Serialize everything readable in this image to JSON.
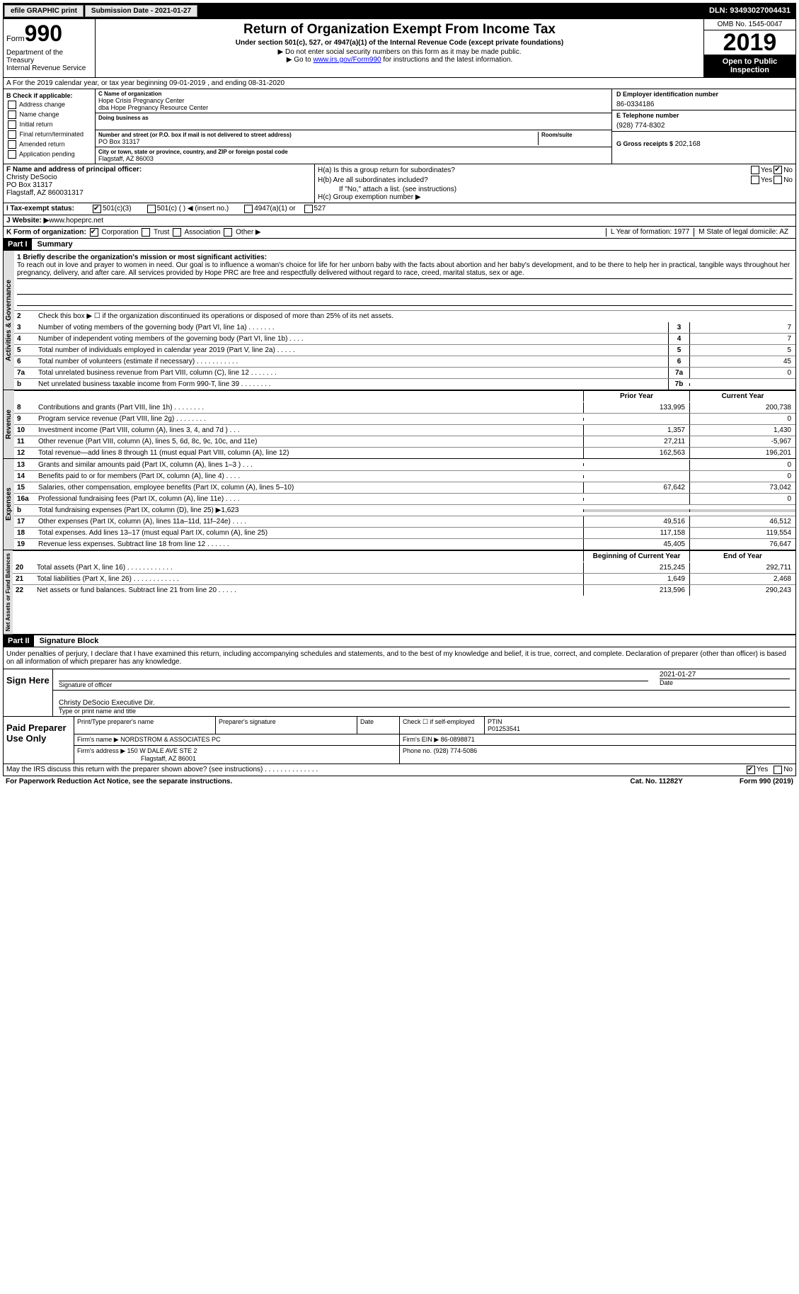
{
  "topbar": {
    "btn1": "efile GRAPHIC print",
    "btn2": "Submission Date - 2021-01-27",
    "dln": "DLN: 93493027004431"
  },
  "header": {
    "form_label": "Form",
    "form_num": "990",
    "dept": "Department of the Treasury\nInternal Revenue Service",
    "title": "Return of Organization Exempt From Income Tax",
    "subtitle": "Under section 501(c), 527, or 4947(a)(1) of the Internal Revenue Code (except private foundations)",
    "note1": "▶ Do not enter social security numbers on this form as it may be made public.",
    "note2_pre": "▶ Go to ",
    "note2_link": "www.irs.gov/Form990",
    "note2_post": " for instructions and the latest information.",
    "omb": "OMB No. 1545-0047",
    "year": "2019",
    "open": "Open to Public Inspection"
  },
  "section_a": "A For the 2019 calendar year, or tax year beginning 09-01-2019    , and ending 08-31-2020",
  "col_b": {
    "label": "B Check if applicable:",
    "items": [
      "Address change",
      "Name change",
      "Initial return",
      "Final return/terminated",
      "Amended return",
      "Application pending"
    ]
  },
  "col_c": {
    "name_label": "C Name of organization",
    "name": "Hope Crisis Pregnancy Center",
    "dba": "dba Hope Pregnancy Resource Center",
    "dba_label": "Doing business as",
    "street_label": "Number and street (or P.O. box if mail is not delivered to street address)",
    "room_label": "Room/suite",
    "street": "PO Box 31317",
    "city_label": "City or town, state or province, country, and ZIP or foreign postal code",
    "city": "Flagstaff, AZ   86003"
  },
  "col_d": {
    "ein_label": "D Employer identification number",
    "ein": "86-0334186",
    "phone_label": "E Telephone number",
    "phone": "(928) 774-8302",
    "gross_label": "G Gross receipts $",
    "gross": "202,168"
  },
  "f": {
    "label": "F  Name and address of principal officer:",
    "name": "Christy DeSocio",
    "addr1": "PO Box 31317",
    "addr2": "Flagstaff, AZ   860031317"
  },
  "h": {
    "a_label": "H(a)  Is this a group return for subordinates?",
    "b_label": "H(b)  Are all subordinates included?",
    "b_note": "If \"No,\" attach a list. (see instructions)",
    "c_label": "H(c)  Group exemption number ▶"
  },
  "i": {
    "label": "I  Tax-exempt status:",
    "opts": [
      "501(c)(3)",
      "501(c) (  ) ◀ (insert no.)",
      "4947(a)(1) or",
      "527"
    ]
  },
  "j": {
    "label": "J  Website: ▶",
    "val": " www.hopeprc.net"
  },
  "k": {
    "label": "K Form of organization:",
    "opts": [
      "Corporation",
      "Trust",
      "Association",
      "Other ▶"
    ],
    "l": "L Year of formation: 1977",
    "m": "M State of legal domicile: AZ"
  },
  "part1": {
    "hdr": "Part I",
    "title": "Summary"
  },
  "mission": {
    "label": "1  Briefly describe the organization's mission or most significant activities:",
    "text": "To reach out in love and prayer to women in need. Our goal is to influence a woman's choice for life for her unborn baby with the facts about abortion and her baby's development, and to be there to help her in practical, tangible ways throughout her pregnancy, delivery, and after care. All services provided by Hope PRC are free and respectfully delivered without regard to race, creed, marital status, sex or age."
  },
  "gov": {
    "l2": "Check this box ▶ ☐  if the organization discontinued its operations or disposed of more than 25% of its net assets.",
    "lines": [
      {
        "n": "3",
        "t": "Number of voting members of the governing body (Part VI, line 1a)   .    .    .    .    .    .    .",
        "b": "3",
        "v": "7"
      },
      {
        "n": "4",
        "t": "Number of independent voting members of the governing body (Part VI, line 1b)   .    .    .    .",
        "b": "4",
        "v": "7"
      },
      {
        "n": "5",
        "t": "Total number of individuals employed in calendar year 2019 (Part V, line 2a)   .    .    .    .    .",
        "b": "5",
        "v": "5"
      },
      {
        "n": "6",
        "t": "Total number of volunteers (estimate if necessary)    .    .    .    .    .    .    .    .    .    .    .",
        "b": "6",
        "v": "45"
      },
      {
        "n": "7a",
        "t": "Total unrelated business revenue from Part VIII, column (C), line 12    .    .    .    .    .    .    .",
        "b": "7a",
        "v": "0"
      },
      {
        "n": "b",
        "t": "Net unrelated business taxable income from Form 990-T, line 39    .    .    .    .    .    .    .    .",
        "b": "7b",
        "v": ""
      }
    ]
  },
  "col_hdrs": {
    "prior": "Prior Year",
    "current": "Current Year"
  },
  "rev": [
    {
      "n": "8",
      "t": "Contributions and grants (Part VIII, line 1h)    .    .    .    .    .    .    .    .",
      "p": "133,995",
      "c": "200,738"
    },
    {
      "n": "9",
      "t": "Program service revenue (Part VIII, line 2g)    .    .    .    .    .    .    .    .",
      "p": "",
      "c": "0"
    },
    {
      "n": "10",
      "t": "Investment income (Part VIII, column (A), lines 3, 4, and 7d )    .    .    .",
      "p": "1,357",
      "c": "1,430"
    },
    {
      "n": "11",
      "t": "Other revenue (Part VIII, column (A), lines 5, 6d, 8c, 9c, 10c, and 11e)",
      "p": "27,211",
      "c": "-5,967"
    },
    {
      "n": "12",
      "t": "Total revenue—add lines 8 through 11 (must equal Part VIII, column (A), line 12)",
      "p": "162,563",
      "c": "196,201"
    }
  ],
  "exp": [
    {
      "n": "13",
      "t": "Grants and similar amounts paid (Part IX, column (A), lines 1–3 )   .    .    .",
      "p": "",
      "c": "0"
    },
    {
      "n": "14",
      "t": "Benefits paid to or for members (Part IX, column (A), line 4)    .    .    .    .",
      "p": "",
      "c": "0"
    },
    {
      "n": "15",
      "t": "Salaries, other compensation, employee benefits (Part IX, column (A), lines 5–10)",
      "p": "67,642",
      "c": "73,042"
    },
    {
      "n": "16a",
      "t": "Professional fundraising fees (Part IX, column (A), line 11e)   .    .    .    .",
      "p": "",
      "c": "0"
    },
    {
      "n": "b",
      "t": "Total fundraising expenses (Part IX, column (D), line 25) ▶1,623",
      "p": "SHADE",
      "c": "SHADE"
    },
    {
      "n": "17",
      "t": "Other expenses (Part IX, column (A), lines 11a–11d, 11f–24e)    .    .    .    .",
      "p": "49,516",
      "c": "46,512"
    },
    {
      "n": "18",
      "t": "Total expenses. Add lines 13–17 (must equal Part IX, column (A), line 25)",
      "p": "117,158",
      "c": "119,554"
    },
    {
      "n": "19",
      "t": "Revenue less expenses. Subtract line 18 from line 12   .    .    .    .    .    .",
      "p": "45,405",
      "c": "76,647"
    }
  ],
  "bal_hdrs": {
    "beg": "Beginning of Current Year",
    "end": "End of Year"
  },
  "bal": [
    {
      "n": "20",
      "t": "Total assets (Part X, line 16)   .    .    .    .    .    .    .    .    .    .    .    .",
      "p": "215,245",
      "c": "292,711"
    },
    {
      "n": "21",
      "t": "Total liabilities (Part X, line 26)   .    .    .    .    .    .    .    .    .    .    .    .",
      "p": "1,649",
      "c": "2,468"
    },
    {
      "n": "22",
      "t": "Net assets or fund balances. Subtract line 21 from line 20   .    .    .    .    .",
      "p": "213,596",
      "c": "290,243"
    }
  ],
  "part2": {
    "hdr": "Part II",
    "title": "Signature Block"
  },
  "sig": {
    "intro": "Under penalties of perjury, I declare that I have examined this return, including accompanying schedules and statements, and to the best of my knowledge and belief, it is true, correct, and complete. Declaration of preparer (other than officer) is based on all information of which preparer has any knowledge.",
    "sign_here": "Sign Here",
    "sig_label": "Signature of officer",
    "date_label": "Date",
    "date": "2021-01-27",
    "name": "Christy DeSocio  Executive Dir.",
    "name_label": "Type or print name and title"
  },
  "prep": {
    "title": "Paid Preparer Use Only",
    "h1": "Print/Type preparer's name",
    "h2": "Preparer's signature",
    "h3": "Date",
    "h4": "Check ☐ if self-employed",
    "h5": "PTIN",
    "ptin": "P01253541",
    "firm_label": "Firm's name      ▶",
    "firm": "NORDSTROM & ASSOCIATES PC",
    "ein_label": "Firm's EIN ▶",
    "ein": "86-0898871",
    "addr_label": "Firm's address  ▶",
    "addr1": "150 W DALE AVE STE 2",
    "addr2": "Flagstaff, AZ   86001",
    "phone_label": "Phone no.",
    "phone": "(928) 774-5086"
  },
  "footer": {
    "discuss": "May the IRS discuss this return with the preparer shown above? (see instructions)    .    .    .    .    .    .    .    .    .    .    .    .    .    .",
    "yes": "Yes",
    "no": "No",
    "paperwork": "For Paperwork Reduction Act Notice, see the separate instructions.",
    "cat": "Cat. No. 11282Y",
    "form": "Form 990 (2019)"
  },
  "tabs": {
    "gov": "Activities & Governance",
    "rev": "Revenue",
    "exp": "Expenses",
    "bal": "Net Assets or Fund Balances"
  }
}
